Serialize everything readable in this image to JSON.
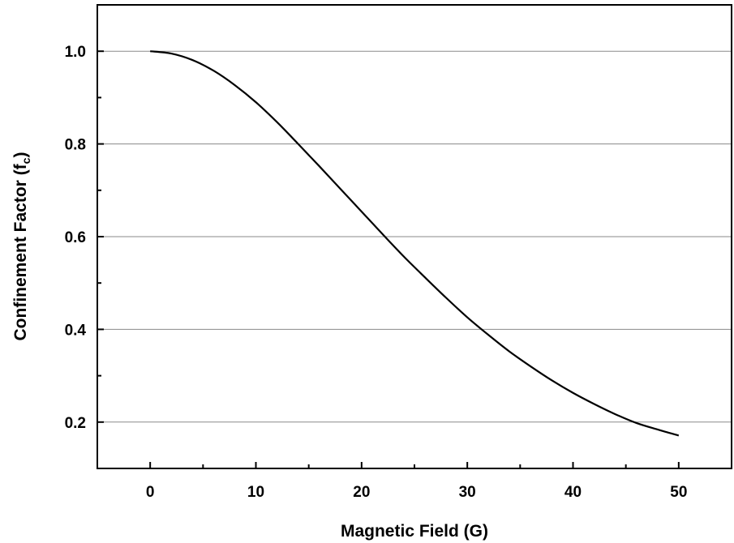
{
  "chart_data": {
    "type": "line",
    "title": "",
    "xlabel": "Magnetic Field (G)",
    "ylabel_main": "Confinement Factor (f",
    "ylabel_sub": "c",
    "ylabel_close": ")",
    "xlim": [
      -5,
      55
    ],
    "ylim": [
      0.1,
      1.1
    ],
    "xticks": [
      0,
      10,
      20,
      30,
      40,
      50
    ],
    "xtick_labels": [
      "0",
      "10",
      "20",
      "30",
      "40",
      "50"
    ],
    "yticks": [
      0.2,
      0.4,
      0.6,
      0.8,
      1.0
    ],
    "ytick_labels": [
      "0.2",
      "0.4",
      "0.6",
      "0.8",
      "1.0"
    ],
    "y_minor_ticks": [
      0.1,
      0.3,
      0.5,
      0.7,
      0.9,
      1.1
    ],
    "grid": "horizontal",
    "line_color": "#000000",
    "series": [
      {
        "x": [
          0,
          2,
          4,
          6,
          8,
          10,
          12,
          14,
          16,
          18,
          20,
          22,
          24,
          26,
          28,
          30,
          32,
          34,
          36,
          38,
          40,
          42,
          44,
          46,
          48,
          50
        ],
        "y": [
          1.0,
          0.995,
          0.981,
          0.958,
          0.927,
          0.89,
          0.847,
          0.8,
          0.752,
          0.703,
          0.654,
          0.605,
          0.557,
          0.512,
          0.468,
          0.426,
          0.388,
          0.352,
          0.32,
          0.29,
          0.263,
          0.239,
          0.217,
          0.198,
          0.184,
          0.171
        ]
      }
    ]
  }
}
